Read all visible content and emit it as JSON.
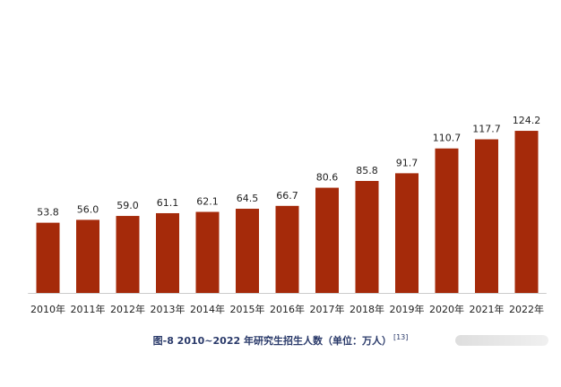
{
  "chart_data": {
    "type": "bar",
    "categories": [
      "2010年",
      "2011年",
      "2012年",
      "2013年",
      "2014年",
      "2015年",
      "2016年",
      "2017年",
      "2018年",
      "2019年",
      "2020年",
      "2021年",
      "2022年"
    ],
    "values": [
      53.8,
      56.0,
      59.0,
      61.1,
      62.1,
      64.5,
      66.7,
      80.6,
      85.8,
      91.7,
      110.7,
      117.7,
      124.2
    ],
    "value_labels": [
      "53.8",
      "56.0",
      "59.0",
      "61.1",
      "62.1",
      "64.5",
      "66.7",
      "80.6",
      "85.8",
      "91.7",
      "110.7",
      "117.7",
      "124.2"
    ],
    "title": "图-8 2010~2022 年研究生招生人数（单位：万人）",
    "reference": "[13]",
    "xlabel": "",
    "ylabel": "",
    "ylim": [
      0,
      130
    ],
    "grid": false,
    "bar_color": "#a52a0a"
  },
  "colors": {
    "bar": "#a52a0a",
    "caption": "#2a3a6a",
    "label": "#222222",
    "axis": "#999999"
  }
}
